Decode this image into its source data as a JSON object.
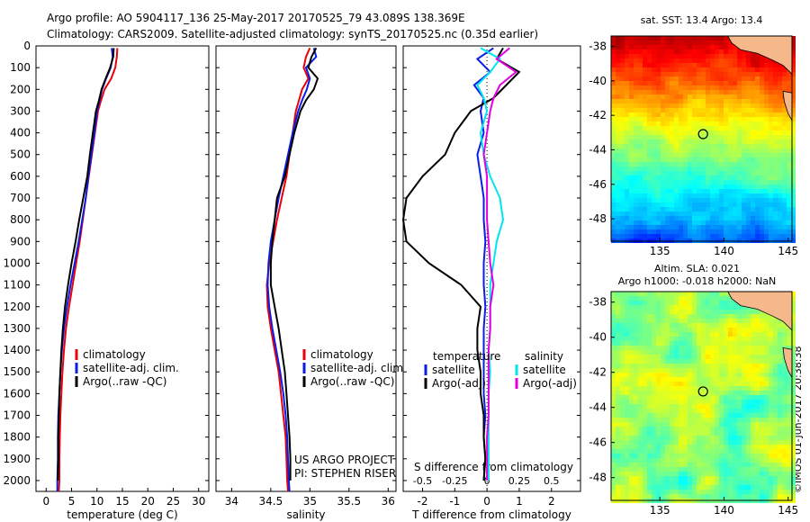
{
  "header": {
    "line1": "Argo profile: AO 5904117_136 25-May-2017 20170525_79 43.089S 138.369E",
    "line2": "Climatology: CARS2009. Satellite-adjusted climatology: synTS_20170525.nc (0.35d earlier)"
  },
  "colors": {
    "climatology": "#e8000b",
    "satellite": "#0a1ee6",
    "argo": "#000000",
    "sal_sat": "#00e5ee",
    "sal_argo": "#e000e0",
    "land": "#f4b88a"
  },
  "depth_ticks": [
    0,
    100,
    200,
    300,
    400,
    500,
    600,
    700,
    800,
    900,
    1000,
    1100,
    1200,
    1300,
    1400,
    1500,
    1600,
    1700,
    1800,
    1900,
    2000
  ],
  "chart_data": [
    {
      "type": "line",
      "id": "temperature",
      "xlabel": "temperature (deg C)",
      "xlim": [
        -2,
        32
      ],
      "xticks": [
        "0",
        "5",
        "10",
        "15",
        "20",
        "25",
        "30"
      ],
      "xtick_values": [
        0,
        5,
        10,
        15,
        20,
        25,
        30
      ],
      "ylim": [
        0,
        2050
      ],
      "y_reversed": true,
      "legend": [
        "climatology",
        "satellite-adj. clim.",
        "Argo(..raw -QC)"
      ],
      "series": [
        {
          "name": "climatology",
          "color_key": "climatology",
          "x": [
            14,
            13.9,
            13.6,
            12.8,
            11.5,
            10.8,
            10.2,
            9.6,
            9.0,
            8.4,
            7.8,
            7.2,
            6.6,
            5.9,
            5.2,
            4.5,
            3.9,
            3.5,
            3.2,
            3.0,
            2.8,
            2.7,
            2.6,
            2.6,
            2.5
          ],
          "y": [
            10,
            50,
            100,
            150,
            200,
            250,
            300,
            400,
            500,
            600,
            700,
            800,
            900,
            1000,
            1100,
            1200,
            1300,
            1400,
            1500,
            1600,
            1700,
            1800,
            1900,
            2000,
            2050
          ]
        },
        {
          "name": "satellite-adj. clim.",
          "color_key": "satellite",
          "x": [
            12.9,
            13.1,
            12.7,
            11.8,
            11.0,
            10.5,
            10.0,
            9.5,
            8.9,
            8.3,
            7.8,
            7.1,
            6.4,
            5.6,
            4.8,
            4.1,
            3.5,
            3.1,
            2.8,
            2.6,
            2.4,
            2.3,
            2.3,
            2.2,
            2.2
          ],
          "y": [
            10,
            50,
            100,
            150,
            200,
            250,
            300,
            400,
            500,
            600,
            700,
            800,
            900,
            1000,
            1100,
            1200,
            1300,
            1400,
            1500,
            1600,
            1700,
            1800,
            1900,
            2000,
            2050
          ]
        },
        {
          "name": "Argo(..raw -QC)",
          "color_key": "argo",
          "x": [
            13.3,
            13.2,
            12.6,
            11.7,
            10.9,
            10.4,
            9.8,
            9.2,
            8.6,
            8.1,
            7.3,
            6.5,
            5.8,
            5.0,
            4.3,
            3.7,
            3.3,
            3.0,
            2.8,
            2.6,
            2.5,
            2.4,
            2.4,
            2.3
          ],
          "y": [
            10,
            50,
            100,
            150,
            200,
            250,
            300,
            400,
            500,
            600,
            700,
            800,
            900,
            1000,
            1100,
            1200,
            1300,
            1400,
            1500,
            1600,
            1700,
            1800,
            1900,
            2000
          ]
        }
      ]
    },
    {
      "type": "line",
      "id": "salinity",
      "xlabel": "salinity",
      "xlim": [
        33.8,
        36.1
      ],
      "xticks": [
        "34",
        "34.5",
        "35",
        "35.5",
        "36"
      ],
      "xtick_values": [
        34,
        34.5,
        35,
        35.5,
        36
      ],
      "ylim": [
        0,
        2050
      ],
      "y_reversed": true,
      "legend": [
        "climatology",
        "satellite-adj. clim.",
        "Argo(..raw -QC)"
      ],
      "annotation": [
        "US ARGO PROJECT",
        "PI: STEPHEN RISER"
      ],
      "series": [
        {
          "name": "climatology",
          "color_key": "climatology",
          "x": [
            35.0,
            34.95,
            34.92,
            34.98,
            34.9,
            34.86,
            34.82,
            34.78,
            34.74,
            34.7,
            34.64,
            34.58,
            34.53,
            34.48,
            34.45,
            34.46,
            34.5,
            34.55,
            34.6,
            34.63,
            34.66,
            34.69,
            34.7,
            34.71,
            34.72
          ],
          "y": [
            10,
            50,
            100,
            150,
            200,
            250,
            300,
            400,
            500,
            600,
            700,
            800,
            900,
            1000,
            1100,
            1200,
            1300,
            1400,
            1500,
            1600,
            1700,
            1800,
            1900,
            2000,
            2050
          ]
        },
        {
          "name": "satellite-adj. clim.",
          "color_key": "satellite",
          "x": [
            35.05,
            35.08,
            34.95,
            35.0,
            34.96,
            34.9,
            34.85,
            34.78,
            34.72,
            34.66,
            34.6,
            34.55,
            34.5,
            34.47,
            34.46,
            34.48,
            34.52,
            34.57,
            34.62,
            34.66,
            34.69,
            34.71,
            34.72,
            34.73,
            34.74
          ],
          "y": [
            10,
            50,
            100,
            150,
            200,
            250,
            300,
            400,
            500,
            600,
            700,
            800,
            900,
            1000,
            1100,
            1200,
            1300,
            1400,
            1500,
            1600,
            1700,
            1800,
            1900,
            2000,
            2050
          ]
        },
        {
          "name": "Argo(..raw -QC)",
          "color_key": "argo",
          "x": [
            35.08,
            35.02,
            34.98,
            35.1,
            35.05,
            34.95,
            34.88,
            34.8,
            34.74,
            34.68,
            34.58,
            34.55,
            34.52,
            34.5,
            34.5,
            34.55,
            34.6,
            34.64,
            34.68,
            34.7,
            34.72,
            34.74,
            34.75,
            34.75
          ],
          "y": [
            10,
            50,
            100,
            150,
            200,
            250,
            300,
            400,
            500,
            600,
            700,
            800,
            900,
            1000,
            1100,
            1200,
            1300,
            1400,
            1500,
            1600,
            1700,
            1800,
            1900,
            2000
          ]
        }
      ]
    },
    {
      "type": "line",
      "id": "difference",
      "xlabel": "T difference from climatology",
      "xlabel_top": "S difference from climatology",
      "xlim": [
        -2.6,
        2.9
      ],
      "xticks": [
        "-2",
        "-1",
        "0",
        "1",
        "2"
      ],
      "xtick_values": [
        -2,
        -1,
        0,
        1,
        2
      ],
      "xticks_top": [
        "-0.5",
        "-0.25",
        "0",
        "0.25",
        "0.5"
      ],
      "ylim": [
        0,
        2050
      ],
      "y_reversed": true,
      "legend_temperature": {
        "title": "temperature",
        "items": [
          "satellite",
          "Argo(-adj)"
        ]
      },
      "legend_salinity": {
        "title": "salinity",
        "items": [
          "satellite",
          "Argo(-adj)"
        ]
      },
      "series": [
        {
          "name": "T satellite",
          "color_key": "satellite",
          "x": [
            0.2,
            -0.3,
            0.1,
            -0.4,
            -0.1,
            -0.2,
            -0.1,
            -0.3,
            -0.2,
            -0.1,
            -0.1,
            -0.05,
            -0.1,
            -0.1,
            -0.05,
            -0.1,
            -0.1,
            -0.1,
            -0.1,
            -0.05,
            -0.1,
            -0.05,
            -0.1
          ],
          "y": [
            10,
            60,
            120,
            180,
            240,
            300,
            400,
            500,
            600,
            700,
            800,
            900,
            1000,
            1100,
            1200,
            1300,
            1400,
            1500,
            1600,
            1700,
            1800,
            1900,
            2000
          ]
        },
        {
          "name": "T Argo(-adj)",
          "color_key": "argo",
          "x": [
            0.5,
            0.3,
            1.0,
            0.6,
            0.2,
            -0.5,
            -1.0,
            -1.3,
            -2.0,
            -2.5,
            -2.6,
            -2.5,
            -1.8,
            -0.8,
            -0.2,
            -0.3,
            -0.3,
            -0.2,
            -0.2,
            -0.1,
            -0.1,
            -0.05,
            -0.1
          ],
          "y": [
            10,
            60,
            120,
            180,
            240,
            300,
            400,
            500,
            600,
            700,
            800,
            900,
            1000,
            1100,
            1200,
            1300,
            1400,
            1500,
            1600,
            1700,
            1800,
            1900,
            2000
          ]
        },
        {
          "name": "S satellite",
          "color_key": "sal_sat",
          "x": [
            -0.2,
            0.4,
            0.1,
            -0.3,
            -0.1,
            0.0,
            -0.2,
            -0.1,
            0.1,
            0.4,
            0.5,
            0.3,
            0.2,
            0.1,
            0.1,
            0.1,
            0.05,
            0.1,
            0.05,
            0.05,
            0.05,
            0.05,
            0.05
          ],
          "y": [
            10,
            60,
            120,
            180,
            240,
            300,
            400,
            500,
            600,
            700,
            800,
            900,
            1000,
            1100,
            1200,
            1300,
            1400,
            1500,
            1600,
            1700,
            1800,
            1900,
            2000
          ]
        },
        {
          "name": "S Argo(-adj)",
          "color_key": "sal_argo",
          "x": [
            0.7,
            0.3,
            0.9,
            0.4,
            0.2,
            0.1,
            0.0,
            -0.1,
            0.0,
            0.0,
            0.0,
            0.05,
            0.1,
            0.2,
            0.1,
            0.1,
            0.05,
            0.05,
            0.05,
            0.05,
            0.0,
            0.0,
            0.0
          ],
          "y": [
            10,
            60,
            120,
            180,
            240,
            300,
            400,
            500,
            600,
            700,
            800,
            900,
            1000,
            1100,
            1200,
            1300,
            1400,
            1500,
            1600,
            1700,
            1800,
            1900,
            2000
          ]
        }
      ]
    },
    {
      "type": "heatmap",
      "id": "sst_map",
      "title": "sat. SST: 13.4  Argo: 13.4",
      "xticks": [
        "135",
        "140",
        "145"
      ],
      "yticks": [
        "-38",
        "-40",
        "-42",
        "-44",
        "-46",
        "-48"
      ],
      "xlim": [
        131.2,
        145.3
      ],
      "ylim": [
        -49.3,
        -37.4
      ],
      "marker": [
        138.37,
        -43.09
      ]
    },
    {
      "type": "heatmap",
      "id": "sla_map",
      "title_lines": [
        "Altim. SLA: 0.021",
        "Argo h1000: -0.018 h2000: NaN"
      ],
      "xticks": [
        "135",
        "140",
        "145"
      ],
      "yticks": [
        "-38",
        "-40",
        "-42",
        "-44",
        "-46",
        "-48"
      ],
      "xlim": [
        131.2,
        145.3
      ],
      "ylim": [
        -49.3,
        -37.4
      ],
      "marker": [
        138.37,
        -43.09
      ]
    }
  ],
  "footer_stamp": "©IMOS 01-Jun-2017 20:38:38"
}
